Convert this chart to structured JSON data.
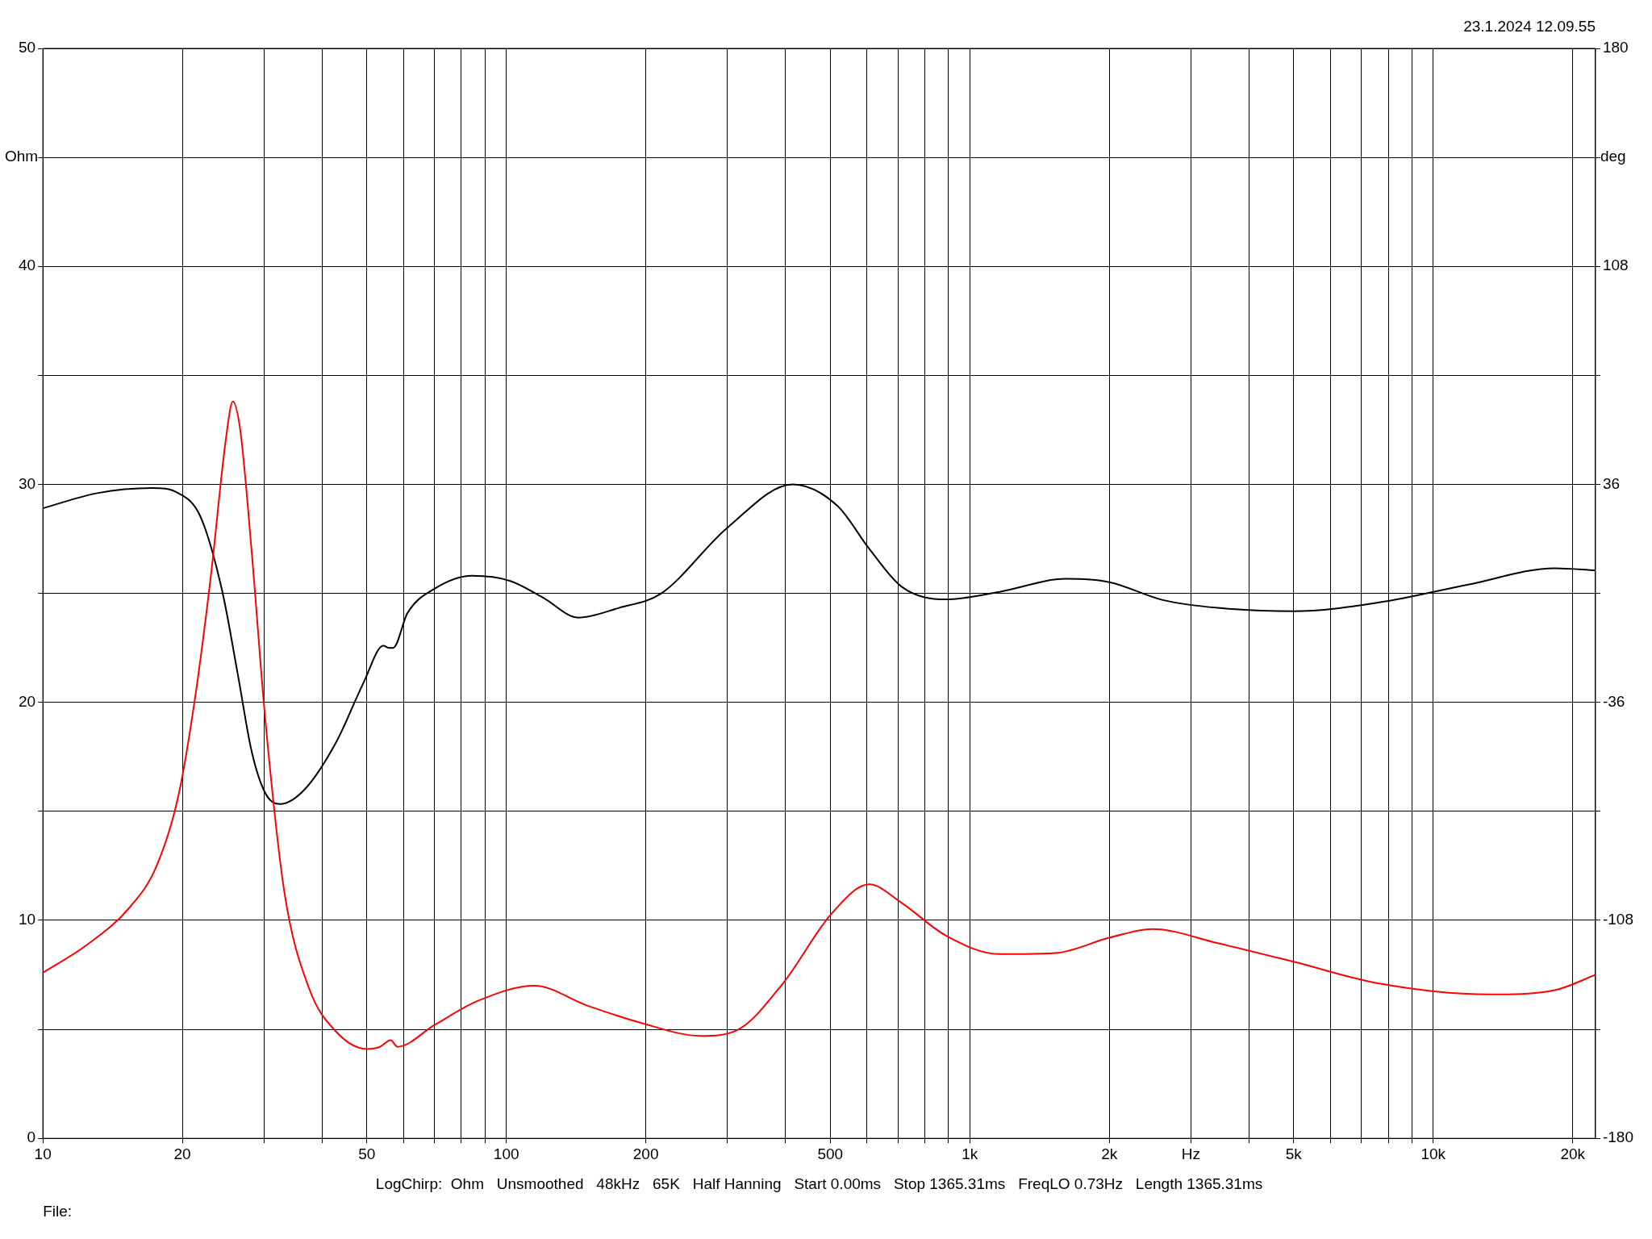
{
  "chart_data": {
    "type": "line",
    "ylabel": "Ohm",
    "y2label": "deg",
    "annotations": [
      "23.1.2024 12.09.55",
      "LogChirp:  Ohm   Unsmoothed   48kHz   65K   Half Hanning   Start 0.00ms   Stop 1365.31ms   FreqLO 0.73Hz   Length 1365.31ms",
      "File:"
    ],
    "log": "x",
    "grid": true,
    "legend": false,
    "marker": "none",
    "line_style": "solid",
    "xlim": [
      10,
      22400
    ],
    "xticks": [
      10,
      20,
      {
        "value": 30,
        "label": null
      },
      {
        "value": 40,
        "label": null
      },
      50,
      {
        "value": 60,
        "label": null
      },
      {
        "value": 70,
        "label": null
      },
      {
        "value": 80,
        "label": null
      },
      {
        "value": 90,
        "label": null
      },
      100,
      200,
      {
        "value": 300,
        "label": null
      },
      {
        "value": 400,
        "label": null
      },
      500,
      {
        "value": 600,
        "label": null
      },
      {
        "value": 700,
        "label": null
      },
      {
        "value": 800,
        "label": null
      },
      {
        "value": 900,
        "label": null
      },
      {
        "value": 1000,
        "label": "1k"
      },
      {
        "value": 2000,
        "label": "2k"
      },
      {
        "value": 3000,
        "label": "Hz"
      },
      {
        "value": 4000,
        "label": null
      },
      {
        "value": 5000,
        "label": "5k"
      },
      {
        "value": 6000,
        "label": null
      },
      {
        "value": 7000,
        "label": null
      },
      {
        "value": 8000,
        "label": null
      },
      {
        "value": 9000,
        "label": null
      },
      {
        "value": 10000,
        "label": "10k"
      },
      {
        "value": 20000,
        "label": "20k"
      }
    ],
    "ylim": [
      0,
      50
    ],
    "yticks": [
      0,
      {
        "value": 5,
        "label": null
      },
      10,
      {
        "value": 15,
        "label": null
      },
      20,
      {
        "value": 25,
        "label": null
      },
      30,
      {
        "value": 35,
        "label": null
      },
      40,
      {
        "value": 45,
        "label": null
      },
      50
    ],
    "y2lim": [
      -180,
      180
    ],
    "y2ticks": [
      -180,
      {
        "value": -144,
        "label": null
      },
      -108,
      {
        "value": -72,
        "label": null
      },
      -36,
      {
        "value": 0,
        "label": null
      },
      36,
      {
        "value": 72,
        "label": null
      },
      108,
      {
        "value": 144,
        "label": null
      },
      180
    ],
    "series": [
      {
        "color": "#ff0000",
        "x": [
          10,
          12.4,
          15.4,
          17.6,
          19.6,
          21.3,
          23.1,
          24.8,
          25.7,
          26.7,
          28.2,
          30.2,
          33.2,
          37.5,
          42.9,
          50,
          53.4,
          56.3,
          58.2,
          70,
          86.7,
          115,
          149,
          195,
          263,
          317,
          395,
          503,
          607,
          713,
          888,
          1160,
          1530,
          2000,
          2480,
          3430,
          5000,
          7650,
          13200,
          18300,
          22400
        ],
        "values": [
          7.6,
          8.85,
          10.6,
          12.5,
          15.7,
          20.2,
          26,
          32,
          33.8,
          32.4,
          27,
          19.2,
          11.3,
          6.9,
          4.9,
          4.1,
          4.2,
          4.5,
          4.2,
          5.2,
          6.3,
          7.0,
          6.1,
          5.3,
          4.7,
          5.0,
          7.1,
          10.3,
          11.65,
          10.8,
          9.3,
          8.45,
          8.5,
          9.2,
          9.6,
          8.95,
          8.1,
          7.1,
          6.6,
          6.8,
          7.5
        ]
      },
      {
        "color": "#000000",
        "axis": "y2",
        "x": [
          10,
          13.1,
          17.2,
          19.6,
          21.9,
          24.4,
          26.4,
          28.2,
          30.2,
          32.5,
          36.6,
          43,
          49.2,
          54.3,
          55.8,
          57,
          61.2,
          70,
          84.4,
          102,
          120,
          143,
          175,
          216,
          300,
          415,
          519,
          607,
          713,
          888,
          1160,
          1610,
          2000,
          2610,
          3430,
          5000,
          7650,
          11900,
          18300,
          22400
        ],
        "values": [
          28.1,
          33.1,
          34.8,
          33.1,
          25.2,
          0.5,
          -27.6,
          -52,
          -66,
          -69.6,
          -65,
          -49,
          -29.5,
          -17.3,
          -18,
          -18,
          -6.5,
          1.5,
          5.8,
          4.1,
          -1.4,
          -8,
          -4.8,
          0,
          21.7,
          36,
          28.8,
          14.7,
          2.2,
          -2,
          0.5,
          4.8,
          3.7,
          -2.2,
          -4.8,
          -5.9,
          -3,
          2.9,
          8.3,
          7.6
        ]
      }
    ]
  }
}
